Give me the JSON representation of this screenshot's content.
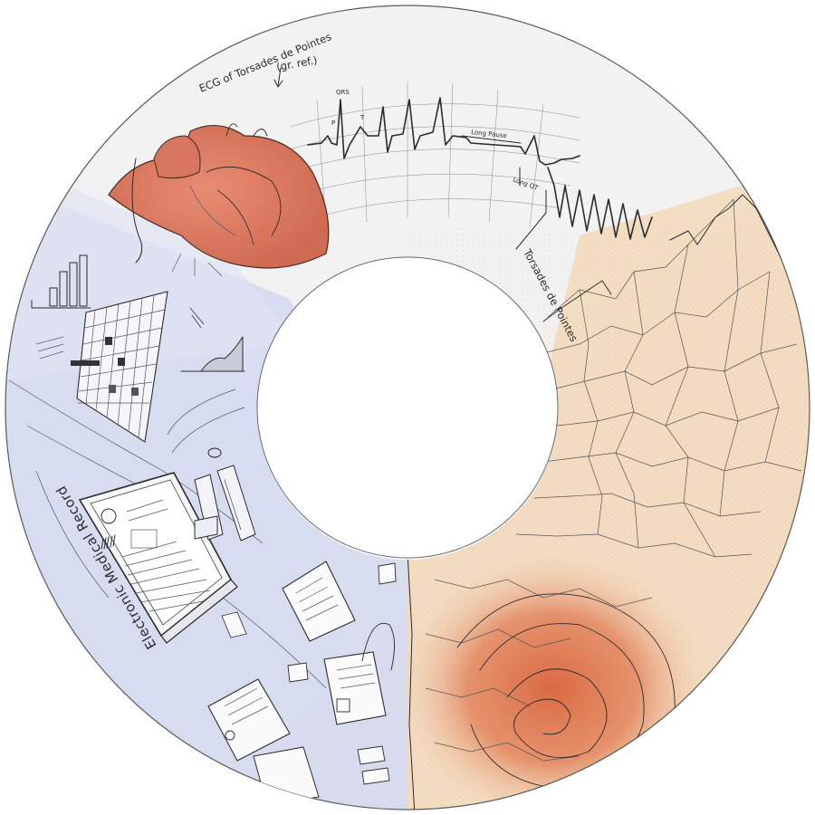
{
  "colors": {
    "background": "#ffffff",
    "ring_edge": "#5a5a5a",
    "ecg_zone": "#f2f2f3",
    "ehr_zone": "#d9dcf0",
    "tissue_zone": "#f1dcc4",
    "tissue_hot": "#d9643c",
    "heart_fill": "#e0826a",
    "ink": "#2b2b2b"
  },
  "labels": {
    "ecg_title": "ECG of Torsades de Pointes",
    "ecg_ref": "(gr. ref.)",
    "qrs": "QRS",
    "p": "P",
    "t": "T",
    "long_pause": "Long Pause",
    "long_qt": "Long QT",
    "torsades": "Torsades de Pointes",
    "ehr": "Electronic Medical Record"
  },
  "icons": [
    "heart-sketch-icon",
    "medical-record-laptop-icon",
    "document-icon",
    "patient-avatar-icon",
    "barcode-icon",
    "grid-chart-icon",
    "bar-chart-icon",
    "phone-icon",
    "tissue-network-icon"
  ]
}
